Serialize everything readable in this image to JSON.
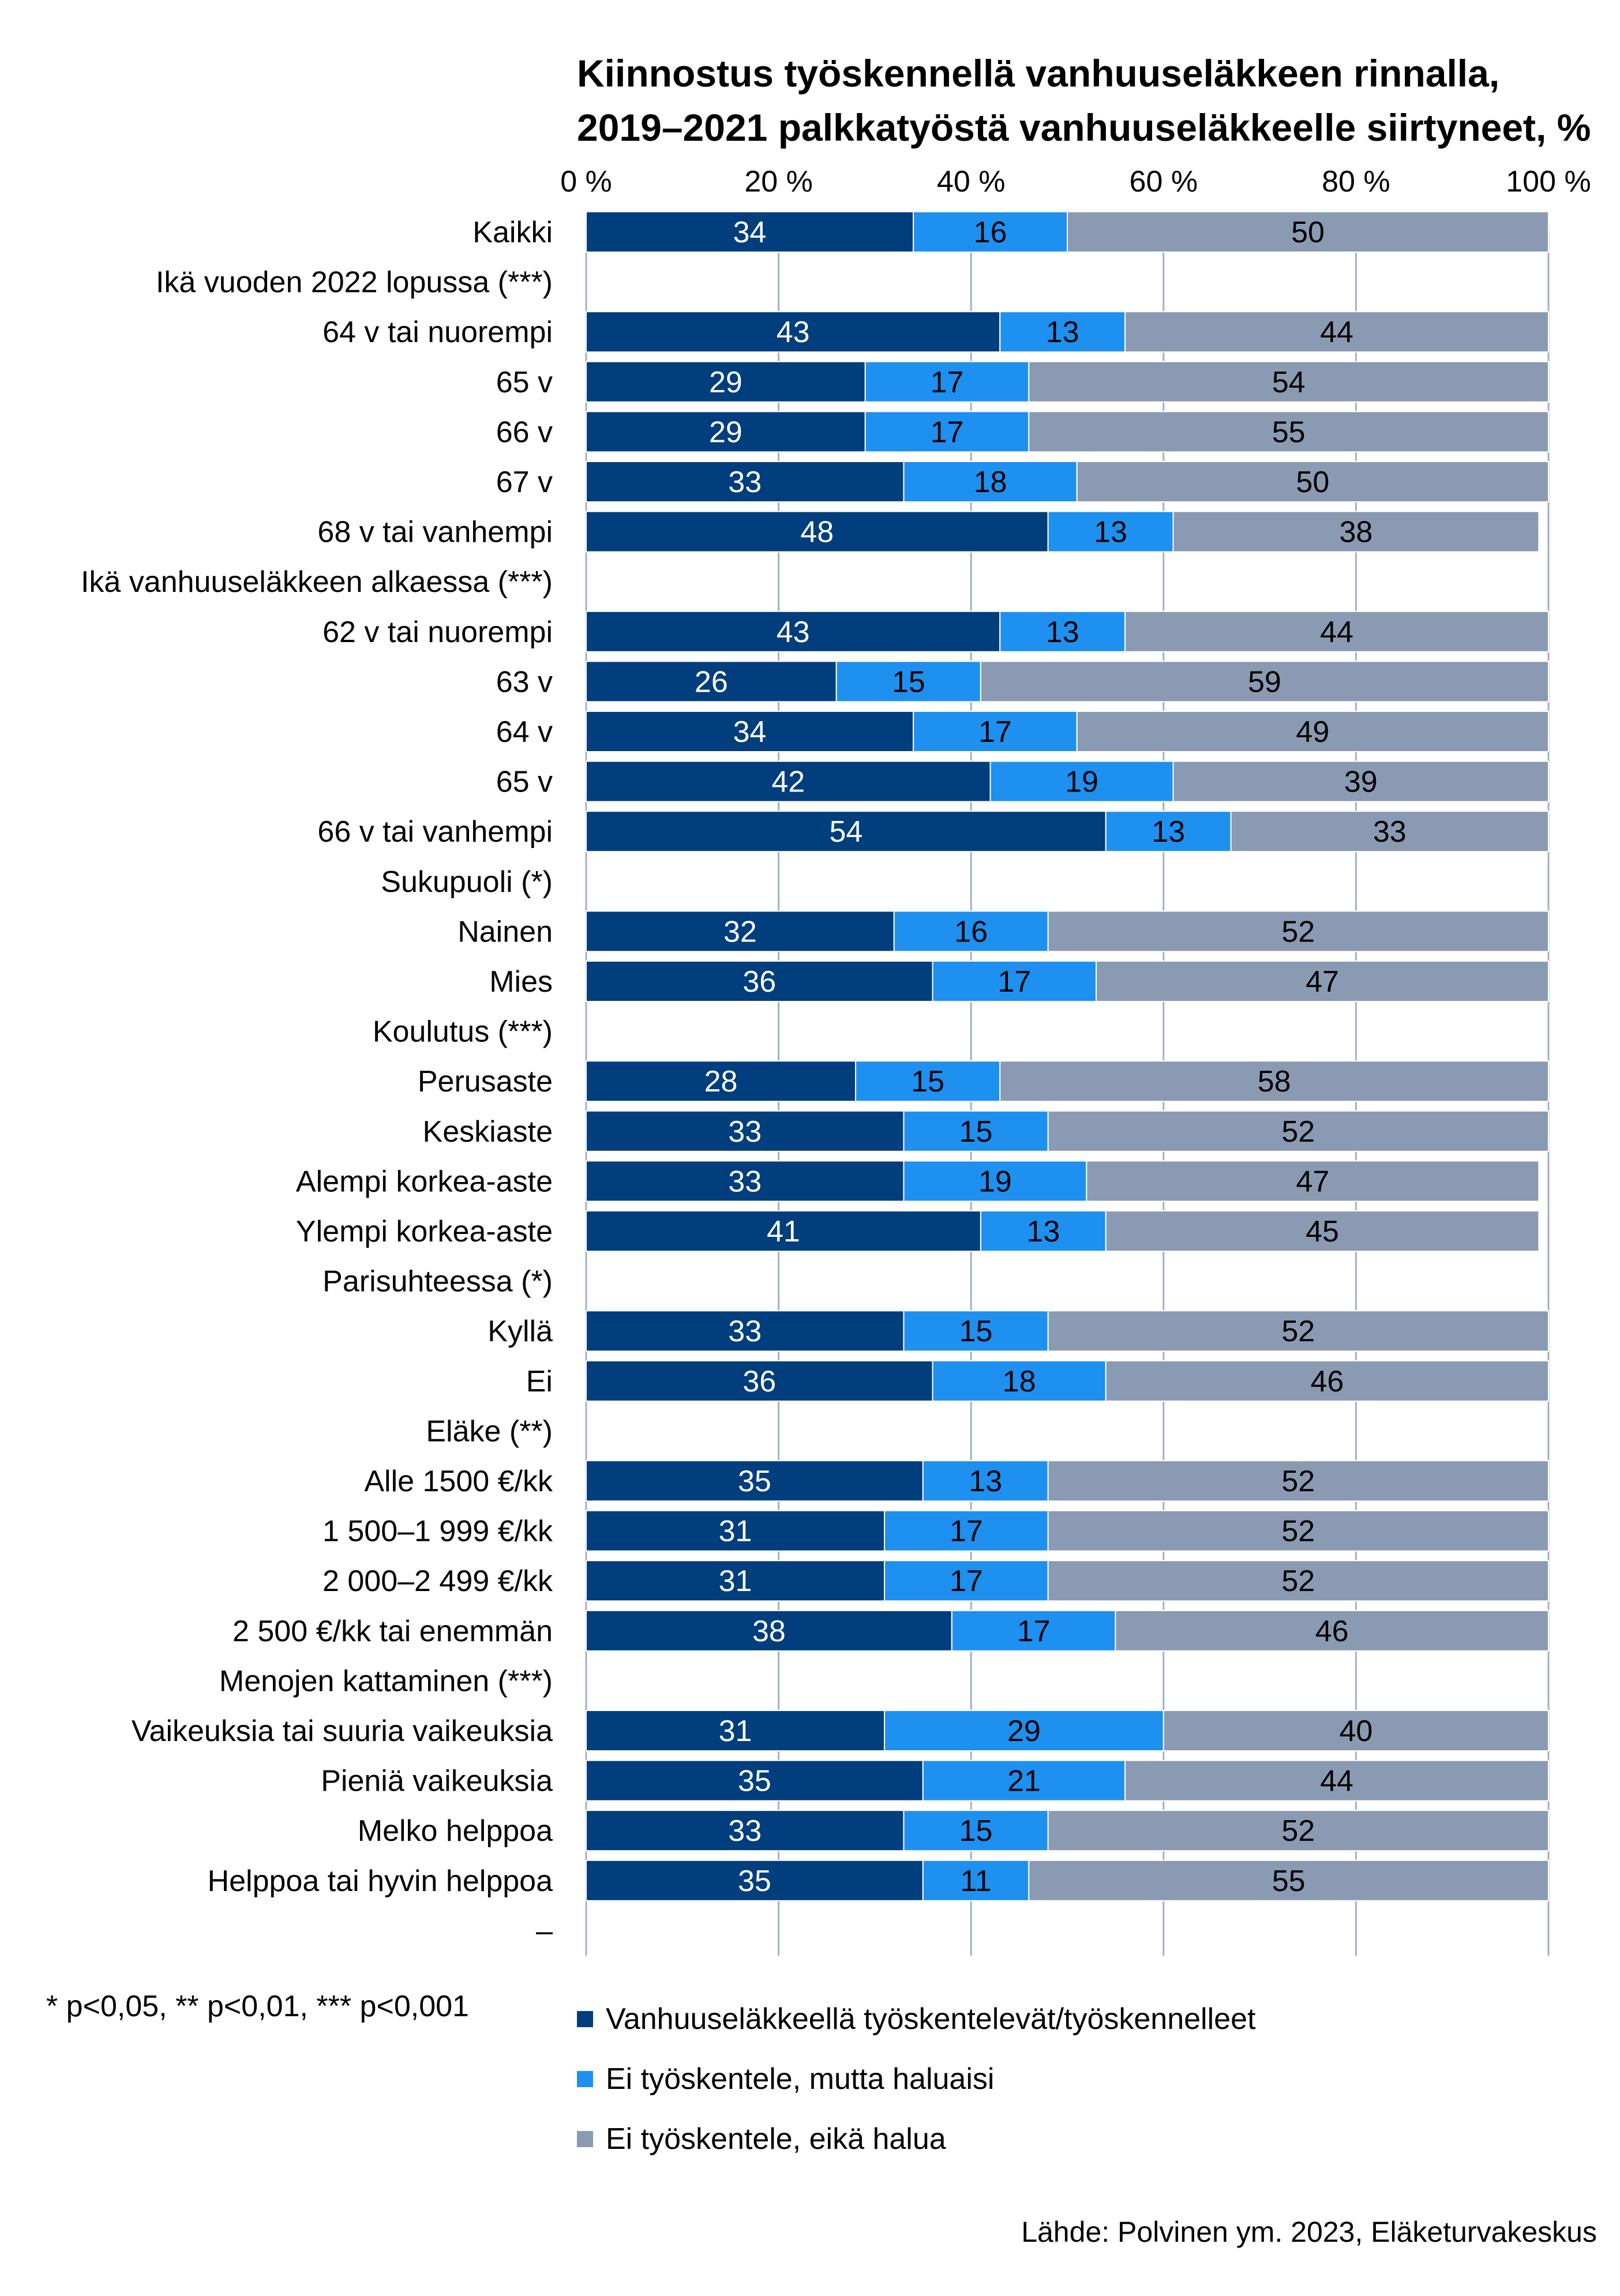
{
  "title_lines": [
    "Kiinnostus työskennellä vanhuuseläkkeen rinnalla,",
    "2019–2021 palkkatyöstä vanhuuseläkkeelle siirtyneet, %"
  ],
  "note": "* p<0,05, ** p<0,01, *** p<0,001",
  "source": "Lähde: Polvinen ym. 2023, Eläketurvakeskus",
  "colors": {
    "series_1": "#003e7e",
    "series_2": "#1e90f0",
    "series_3": "#8a9ab2",
    "grid": "#a0b0c8",
    "value_dark_bg": "#ffffff",
    "value_light_bg": "#000000"
  },
  "legend": [
    "Vanhuuseläkkeellä työskentelevät/työskennelleet",
    "Ei työskentele, mutta haluaisi",
    "Ei työskentele, eikä halua"
  ],
  "chart_data": {
    "type": "bar",
    "orientation": "horizontal",
    "stacked": "100%",
    "xlim": [
      0,
      100
    ],
    "x_ticks": [
      "0 %",
      "20 %",
      "40 %",
      "60 %",
      "80 %",
      "100 %"
    ],
    "grid": "vertical",
    "legend_position": "bottom",
    "categories": [
      "Kaikki",
      "Ikä vuoden 2022 lopussa (***)",
      "64 v tai nuorempi",
      "65 v",
      "66 v",
      "67 v",
      "68 v tai vanhempi",
      "Ikä vanhuuseläkkeen alkaessa (***)",
      "62 v tai nuorempi",
      "63 v",
      "64 v",
      "65 v",
      "66 v tai vanhempi",
      "Sukupuoli (*)",
      "Nainen",
      "Mies",
      "Koulutus (***)",
      "Perusaste",
      "Keskiaste",
      "Alempi korkea-aste",
      "Ylempi korkea-aste",
      "Parisuhteessa (*)",
      "Kyllä",
      "Ei",
      "Eläke (**)",
      "Alle 1500 €/kk",
      "1 500–1 999 €/kk",
      "2 000–2 499 €/kk",
      "2 500 €/kk tai enemmän",
      "Menojen kattaminen (***)",
      "Vaikeuksia tai suuria vaikeuksia",
      "Pieniä vaikeuksia",
      "Melko helppoa",
      "Helppoa tai hyvin helppoa",
      "–"
    ],
    "series": [
      {
        "name": "Vanhuuseläkkeellä työskentelevät/työskennelleet",
        "values": [
          34,
          null,
          43,
          29,
          29,
          33,
          48,
          null,
          43,
          26,
          34,
          42,
          54,
          null,
          32,
          36,
          null,
          28,
          33,
          33,
          41,
          null,
          33,
          36,
          null,
          35,
          31,
          31,
          38,
          null,
          31,
          35,
          33,
          35,
          null
        ]
      },
      {
        "name": "Ei työskentele, mutta haluaisi",
        "values": [
          16,
          null,
          13,
          17,
          17,
          18,
          13,
          null,
          13,
          15,
          17,
          19,
          13,
          null,
          16,
          17,
          null,
          15,
          15,
          19,
          13,
          null,
          15,
          18,
          null,
          13,
          17,
          17,
          17,
          null,
          29,
          21,
          15,
          11,
          null
        ]
      },
      {
        "name": "Ei työskentele, eikä halua",
        "values": [
          50,
          null,
          44,
          54,
          55,
          50,
          38,
          null,
          44,
          59,
          49,
          39,
          33,
          null,
          52,
          47,
          null,
          58,
          52,
          47,
          45,
          null,
          52,
          46,
          null,
          52,
          52,
          52,
          46,
          null,
          40,
          44,
          52,
          55,
          null
        ]
      }
    ]
  }
}
